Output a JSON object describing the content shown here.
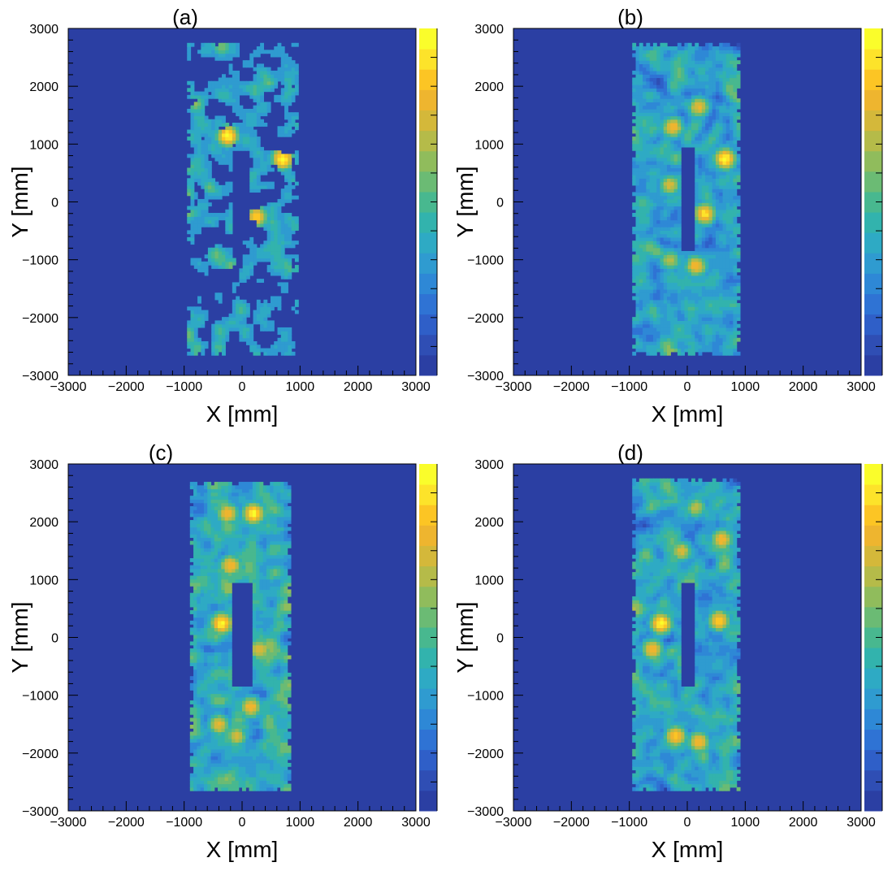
{
  "colors": {
    "background_level": "#2b3fa3",
    "palette": [
      "#2b3fa3",
      "#2f4eb4",
      "#2f5fc8",
      "#2f73d4",
      "#2e88d6",
      "#2f9bd0",
      "#2eaac4",
      "#32b3ad",
      "#48b88f",
      "#6bbb74",
      "#90bc5c",
      "#b5bb49",
      "#d4b83a",
      "#eeb52f",
      "#fcc524",
      "#fde32a",
      "#fafd2b"
    ]
  },
  "chart_data": [
    {
      "type": "heatmap",
      "title": "(a)",
      "xlabel": "X [mm]",
      "ylabel": "Y [mm]",
      "xlim": [
        -3000,
        3000
      ],
      "ylim": [
        -3000,
        3000
      ],
      "xticks": [
        "−3000",
        "−2000",
        "−1000",
        "0",
        "1000",
        "2000",
        "3000"
      ],
      "yticks": [
        "−3000",
        "−2000",
        "−1000",
        "0",
        "1000",
        "2000",
        "3000"
      ],
      "colorbar": true,
      "region": {
        "x": [
          -950,
          950
        ],
        "y": [
          -2650,
          2750
        ]
      },
      "hole": {
        "x": [
          -150,
          150
        ],
        "y": [
          -700,
          900
        ]
      },
      "coverage": 0.62,
      "base_level": 0.42,
      "hotspots": [
        {
          "x": -250,
          "y": 1150,
          "value": 1.0
        },
        {
          "x": 700,
          "y": 750,
          "value": 1.0
        },
        {
          "x": 250,
          "y": -250,
          "value": 0.9
        },
        {
          "x": -800,
          "y": 1700,
          "value": 0.6
        },
        {
          "x": -350,
          "y": 2700,
          "value": 0.6
        },
        {
          "x": -200,
          "y": -1100,
          "value": 0.55
        },
        {
          "x": -450,
          "y": -900,
          "value": 0.55
        }
      ]
    },
    {
      "type": "heatmap",
      "title": "(b)",
      "xlabel": "X [mm]",
      "ylabel": "Y [mm]",
      "xlim": [
        -3000,
        3000
      ],
      "ylim": [
        -3000,
        3000
      ],
      "xticks": [
        "−3000",
        "−2000",
        "−1000",
        "0",
        "1000",
        "2000",
        "3000"
      ],
      "yticks": [
        "−3000",
        "−2000",
        "−1000",
        "0",
        "1000",
        "2000",
        "3000"
      ],
      "colorbar": true,
      "region": {
        "x": [
          -950,
          900
        ],
        "y": [
          -2650,
          2750
        ]
      },
      "hole": {
        "x": [
          -100,
          150
        ],
        "y": [
          -850,
          950
        ]
      },
      "coverage": 0.96,
      "base_level": 0.5,
      "hotspots": [
        {
          "x": 650,
          "y": 750,
          "value": 1.0
        },
        {
          "x": 300,
          "y": -200,
          "value": 0.95
        },
        {
          "x": -250,
          "y": 1300,
          "value": 0.85
        },
        {
          "x": 200,
          "y": 1650,
          "value": 0.8
        },
        {
          "x": 150,
          "y": -1100,
          "value": 0.85
        },
        {
          "x": -300,
          "y": -1000,
          "value": 0.7
        },
        {
          "x": -300,
          "y": 300,
          "value": 0.75
        }
      ]
    },
    {
      "type": "heatmap",
      "title": "(c)",
      "xlabel": "X [mm]",
      "ylabel": "Y [mm]",
      "xlim": [
        -3000,
        3000
      ],
      "ylim": [
        -3000,
        3000
      ],
      "xticks": [
        "−3000",
        "−2000",
        "−1000",
        "0",
        "1000",
        "2000",
        "3000"
      ],
      "yticks": [
        "−3000",
        "−2000",
        "−1000",
        "0",
        "1000",
        "2000",
        "3000"
      ],
      "colorbar": true,
      "region": {
        "x": [
          -900,
          850
        ],
        "y": [
          -2650,
          2700
        ]
      },
      "hole": {
        "x": [
          -180,
          180
        ],
        "y": [
          -850,
          950
        ]
      },
      "coverage": 0.98,
      "base_level": 0.55,
      "hotspots": [
        {
          "x": 200,
          "y": 2150,
          "value": 1.0
        },
        {
          "x": -250,
          "y": 2150,
          "value": 0.85
        },
        {
          "x": -200,
          "y": 1250,
          "value": 0.85
        },
        {
          "x": -350,
          "y": 250,
          "value": 1.0
        },
        {
          "x": 300,
          "y": -200,
          "value": 0.8
        },
        {
          "x": 150,
          "y": -1200,
          "value": 0.85
        },
        {
          "x": -400,
          "y": -1500,
          "value": 0.8
        },
        {
          "x": -100,
          "y": -1700,
          "value": 0.75
        }
      ]
    },
    {
      "type": "heatmap",
      "title": "(d)",
      "xlabel": "X [mm]",
      "ylabel": "Y [mm]",
      "xlim": [
        -3000,
        3000
      ],
      "ylim": [
        -3000,
        3000
      ],
      "xticks": [
        "−3000",
        "−2000",
        "−1000",
        "0",
        "1000",
        "2000",
        "3000"
      ],
      "yticks": [
        "−3000",
        "−2000",
        "−1000",
        "0",
        "1000",
        "2000",
        "3000"
      ],
      "colorbar": true,
      "region": {
        "x": [
          -950,
          900
        ],
        "y": [
          -2650,
          2750
        ]
      },
      "hole": {
        "x": [
          -120,
          150
        ],
        "y": [
          -850,
          950
        ]
      },
      "coverage": 0.9,
      "base_level": 0.52,
      "hotspots": [
        {
          "x": -450,
          "y": 250,
          "value": 1.0
        },
        {
          "x": 550,
          "y": 300,
          "value": 0.9
        },
        {
          "x": -600,
          "y": -200,
          "value": 0.85
        },
        {
          "x": 600,
          "y": 1700,
          "value": 0.85
        },
        {
          "x": -100,
          "y": 1500,
          "value": 0.75
        },
        {
          "x": 150,
          "y": 2250,
          "value": 0.7
        },
        {
          "x": -200,
          "y": -1700,
          "value": 0.9
        },
        {
          "x": 200,
          "y": -1800,
          "value": 0.85
        }
      ]
    }
  ]
}
